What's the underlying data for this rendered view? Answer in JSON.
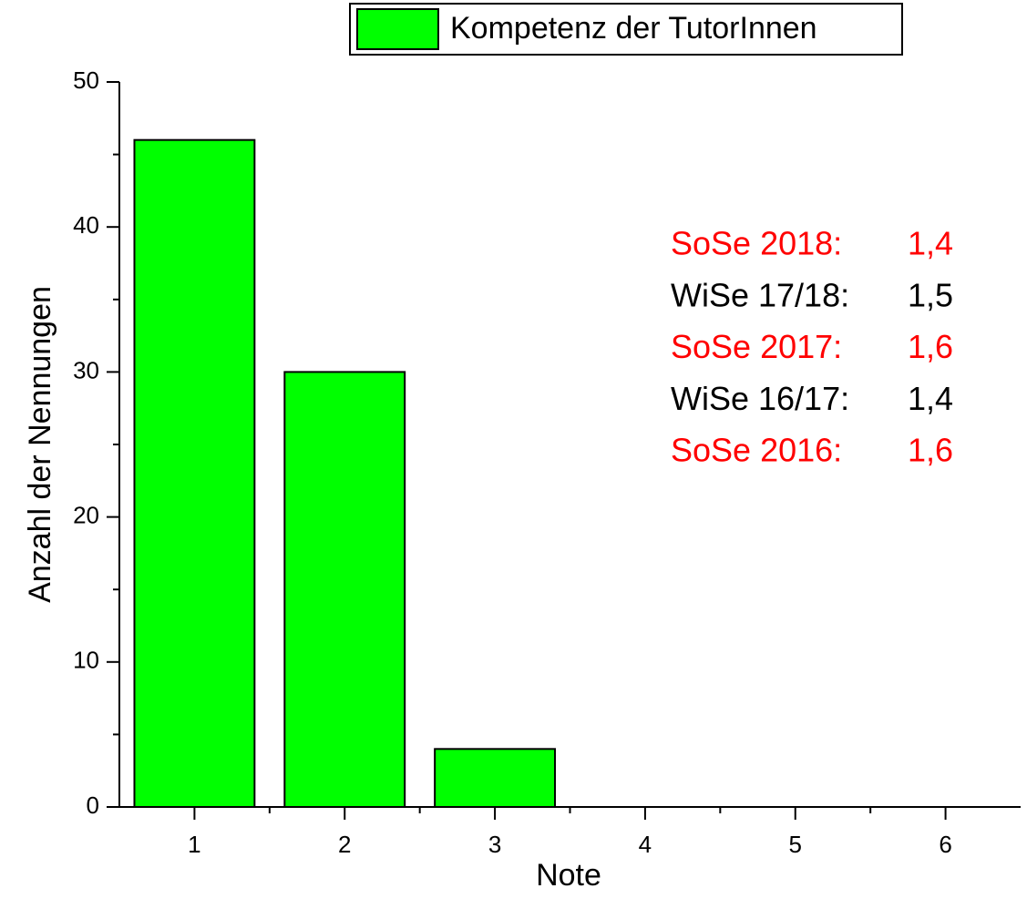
{
  "chart_data": {
    "type": "bar",
    "legend": "Kompetenz der TutorInnen",
    "xlabel": "Note",
    "ylabel": "Anzahl der Nennungen",
    "x": [
      1,
      2,
      3,
      4,
      5,
      6
    ],
    "values": [
      46,
      30,
      4,
      0,
      0,
      0
    ],
    "color": "#00ff00",
    "xlim": [
      0.5,
      6.5
    ],
    "xticks": [
      1,
      2,
      3,
      4,
      5,
      6
    ],
    "ylim": [
      0,
      50
    ],
    "yticks": [
      0,
      10,
      20,
      30,
      40,
      50
    ],
    "minor_ticks": true,
    "bar_width": 0.8,
    "annotations": [
      {
        "label": "SoSe 2018:",
        "value": "1,4",
        "color": "#ff0000"
      },
      {
        "label": "WiSe 17/18:",
        "value": "1,5",
        "color": "#000000"
      },
      {
        "label": "SoSe 2017:",
        "value": "1,6",
        "color": "#ff0000"
      },
      {
        "label": "WiSe 16/17:",
        "value": "1,4",
        "color": "#000000"
      },
      {
        "label": "SoSe 2016:",
        "value": "1,6",
        "color": "#ff0000"
      }
    ]
  }
}
